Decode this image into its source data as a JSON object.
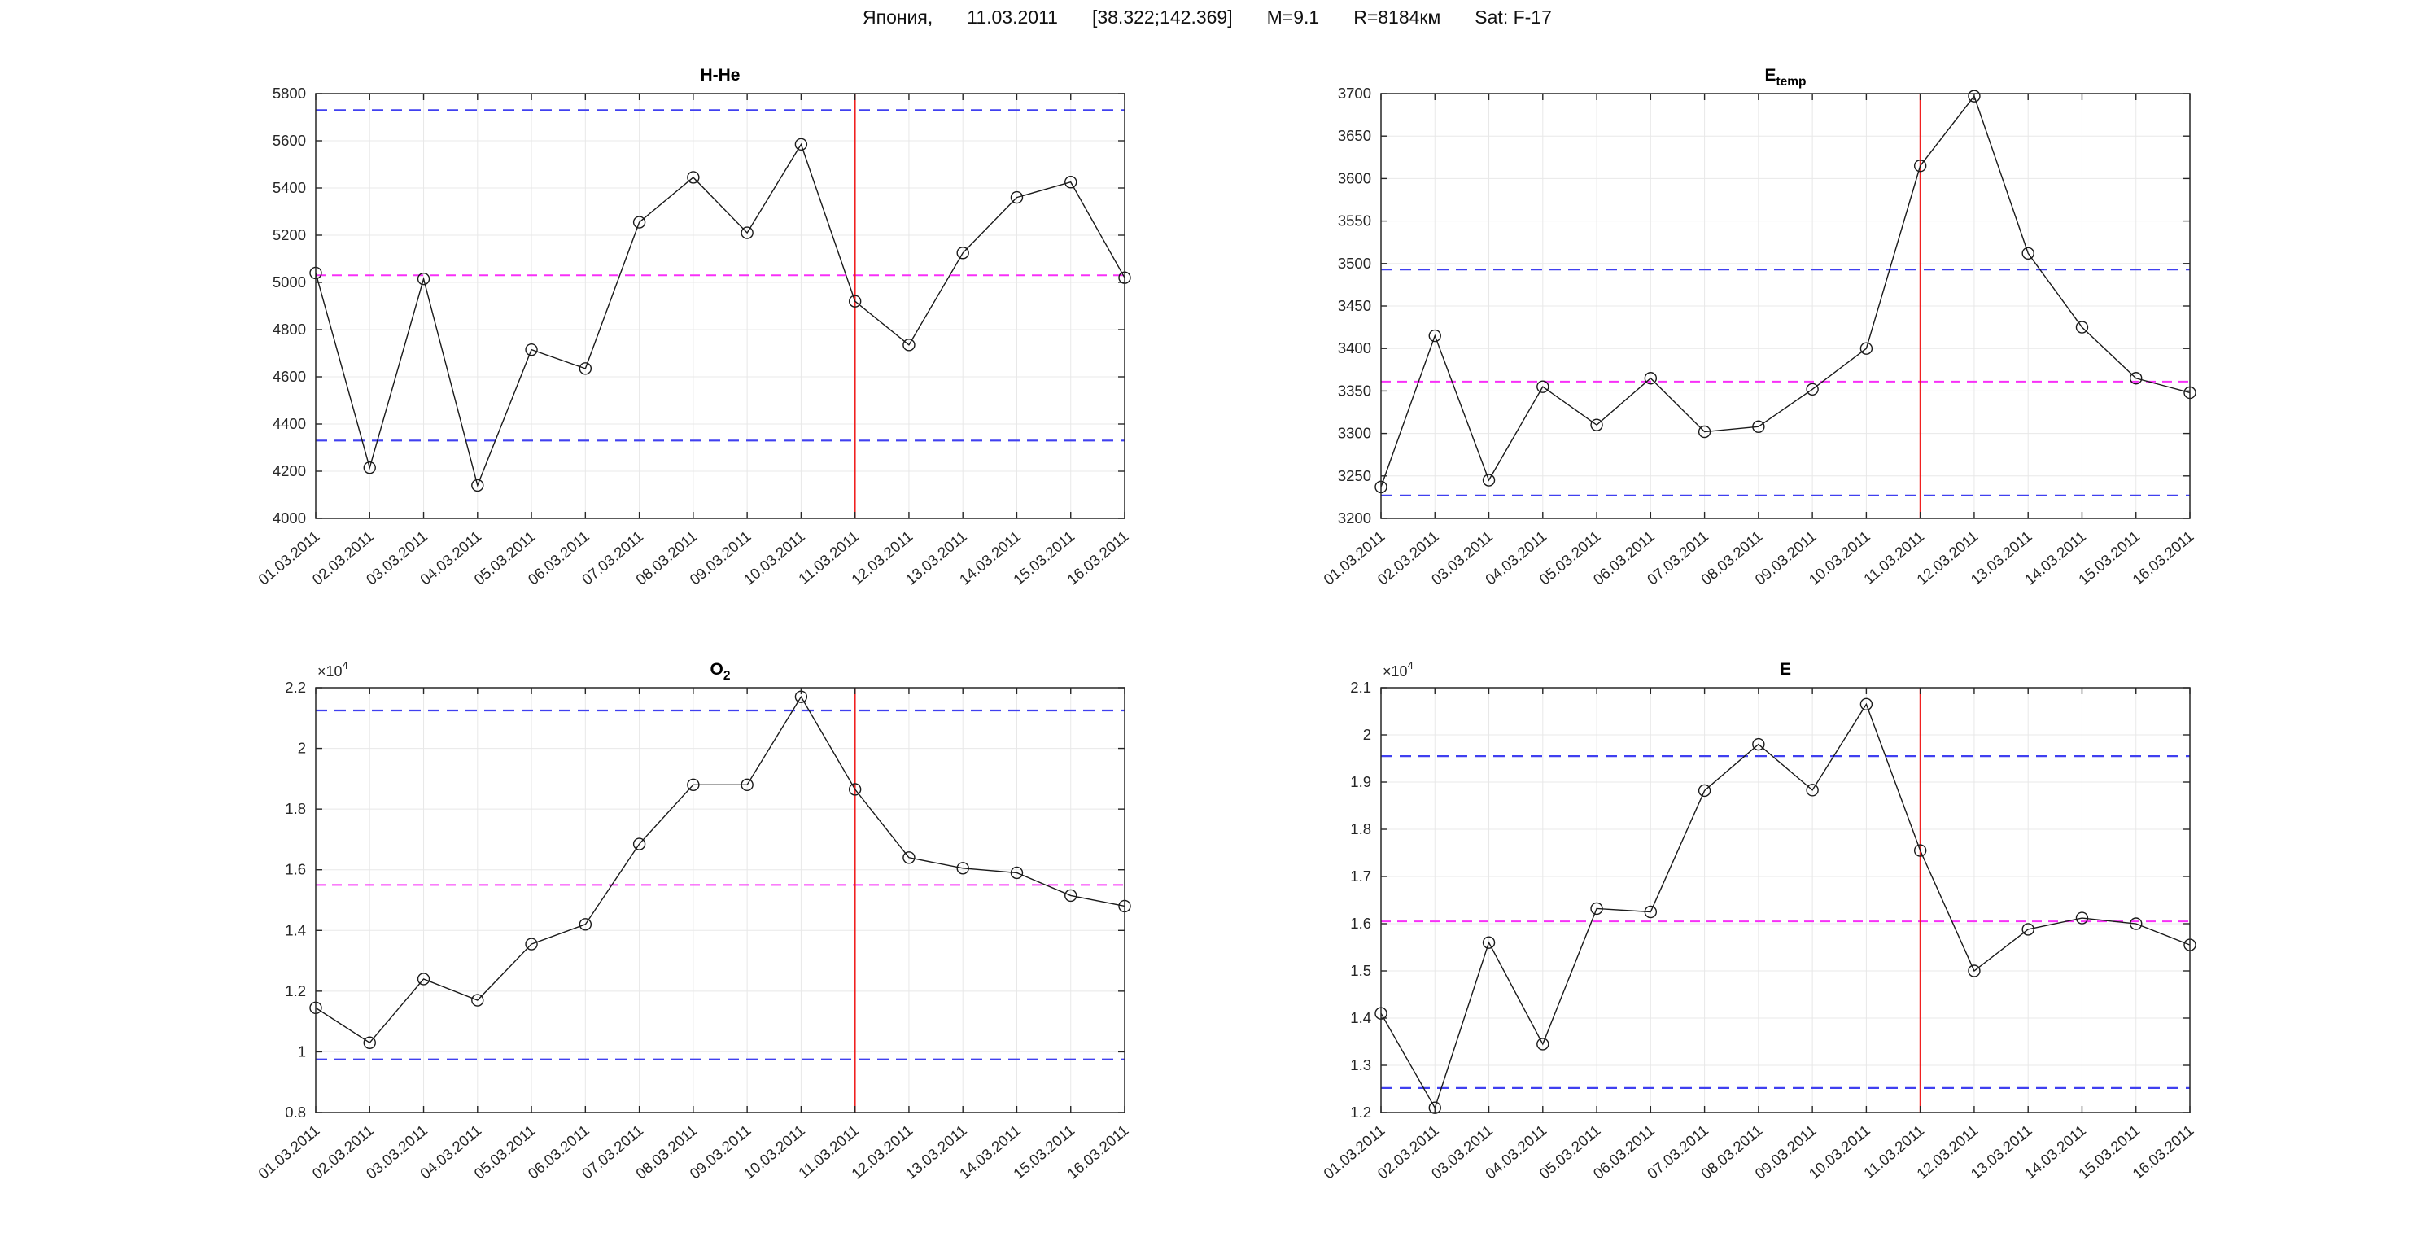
{
  "header": {
    "segments": [
      "Япония,",
      "11.03.2011",
      "[38.322;142.369]",
      "M=9.1",
      "R=8184км",
      "Sat: F-17"
    ]
  },
  "colors": {
    "series": "#1a1a1a",
    "marker": "#1a1a1a",
    "bounds_dashed": "#4040f0",
    "mean_dashed": "#f830f8",
    "event_line": "#f02020",
    "grid": "#e8e8e8",
    "axis": "#262626",
    "text": "#262626"
  },
  "event_x": "11.03.2011",
  "chart_data": [
    {
      "type": "line",
      "id": "h-he",
      "title": "H-He",
      "title_sub": "",
      "y_exponent": 0,
      "ylim": [
        4000,
        5800
      ],
      "ytick_step": 200,
      "grid": true,
      "categories": [
        "01.03.2011",
        "02.03.2011",
        "03.03.2011",
        "04.03.2011",
        "05.03.2011",
        "06.03.2011",
        "07.03.2011",
        "08.03.2011",
        "09.03.2011",
        "10.03.2011",
        "11.03.2011",
        "12.03.2011",
        "13.03.2011",
        "14.03.2011",
        "15.03.2011",
        "16.03.2011"
      ],
      "values": [
        5040,
        4215,
        5015,
        4140,
        4715,
        4635,
        5255,
        5445,
        5210,
        5585,
        4920,
        4735,
        5125,
        5360,
        5425,
        5020
      ],
      "upper_bound": 5730,
      "lower_bound": 4330,
      "mean_line": 5030,
      "event_x": "11.03.2011"
    },
    {
      "type": "line",
      "id": "e-temp",
      "title": "E",
      "title_sub": "temp",
      "y_exponent": 0,
      "ylim": [
        3200,
        3700
      ],
      "ytick_step": 50,
      "grid": true,
      "categories": [
        "01.03.2011",
        "02.03.2011",
        "03.03.2011",
        "04.03.2011",
        "05.03.2011",
        "06.03.2011",
        "07.03.2011",
        "08.03.2011",
        "09.03.2011",
        "10.03.2011",
        "11.03.2011",
        "12.03.2011",
        "13.03.2011",
        "14.03.2011",
        "15.03.2011",
        "16.03.2011"
      ],
      "values": [
        3237,
        3415,
        3245,
        3355,
        3310,
        3365,
        3302,
        3308,
        3352,
        3400,
        3615,
        3697,
        3512,
        3425,
        3365,
        3348
      ],
      "upper_bound": 3493,
      "lower_bound": 3227,
      "mean_line": 3361,
      "event_x": "11.03.2011"
    },
    {
      "type": "line",
      "id": "o2",
      "title": "O",
      "title_sub": "2",
      "y_exponent": 4,
      "y_exponent_label": "×10",
      "ylim": [
        8000,
        22000
      ],
      "ytick_step": 2000,
      "grid": true,
      "categories": [
        "01.03.2011",
        "02.03.2011",
        "03.03.2011",
        "04.03.2011",
        "05.03.2011",
        "06.03.2011",
        "07.03.2011",
        "08.03.2011",
        "09.03.2011",
        "10.03.2011",
        "11.03.2011",
        "12.03.2011",
        "13.03.2011",
        "14.03.2011",
        "15.03.2011",
        "16.03.2011"
      ],
      "values": [
        11450,
        10300,
        12400,
        11700,
        13550,
        14200,
        16850,
        18800,
        18800,
        21700,
        18650,
        16400,
        16050,
        15900,
        15150,
        14800
      ],
      "upper_bound": 21250,
      "lower_bound": 9750,
      "mean_line": 15500,
      "event_x": "11.03.2011"
    },
    {
      "type": "line",
      "id": "e",
      "title": "E",
      "title_sub": "",
      "y_exponent": 4,
      "y_exponent_label": "×10",
      "ylim": [
        12000,
        21000
      ],
      "ytick_step": 1000,
      "grid": true,
      "categories": [
        "01.03.2011",
        "02.03.2011",
        "03.03.2011",
        "04.03.2011",
        "05.03.2011",
        "06.03.2011",
        "07.03.2011",
        "08.03.2011",
        "09.03.2011",
        "10.03.2011",
        "11.03.2011",
        "12.03.2011",
        "13.03.2011",
        "14.03.2011",
        "15.03.2011",
        "16.03.2011"
      ],
      "values": [
        14100,
        12100,
        15600,
        13450,
        16320,
        16250,
        18820,
        19800,
        18830,
        20650,
        17550,
        15000,
        15880,
        16120,
        16000,
        15550
      ],
      "upper_bound": 19550,
      "lower_bound": 12520,
      "mean_line": 16050,
      "event_x": "11.03.2011"
    }
  ]
}
